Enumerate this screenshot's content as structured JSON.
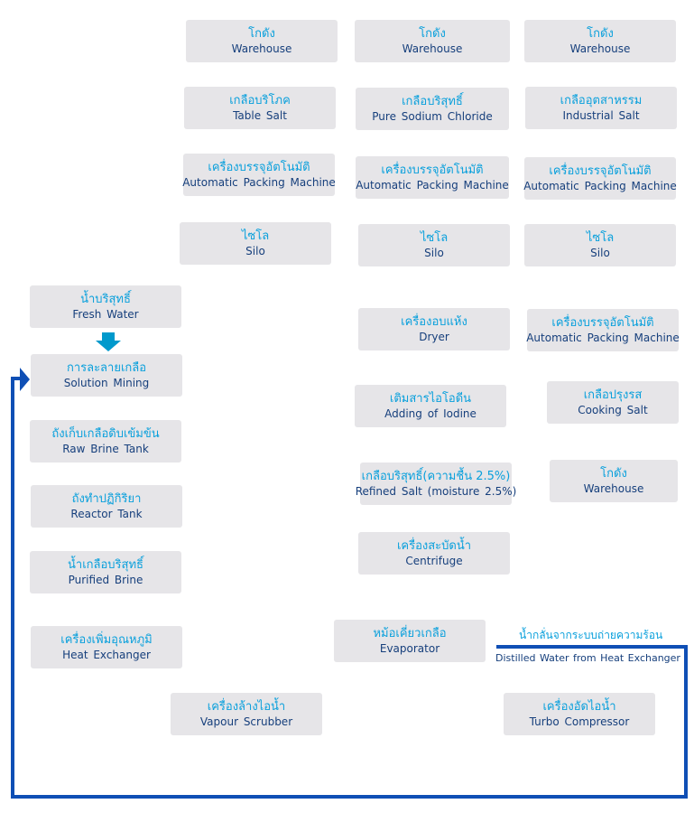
{
  "boxes": {
    "wh1": {
      "th": "โกดัง",
      "en": "Warehouse"
    },
    "wh2": {
      "th": "โกดัง",
      "en": "Warehouse"
    },
    "wh3": {
      "th": "โกดัง",
      "en": "Warehouse"
    },
    "table_salt": {
      "th": "เกลือบริโภค",
      "en": "Table Salt"
    },
    "pure_nacl": {
      "th": "เกลือบริสุทธิ์",
      "en": "Pure Sodium Chloride"
    },
    "industrial": {
      "th": "เกลืออุตสาหรรม",
      "en": "Industrial Salt"
    },
    "pack1": {
      "th": "เครื่องบรรจุอัตโนมัติ",
      "en": "Automatic Packing Machine"
    },
    "pack2": {
      "th": "เครื่องบรรจุอัตโนมัติ",
      "en": "Automatic Packing Machine"
    },
    "pack3": {
      "th": "เครื่องบรรจุอัตโนมัติ",
      "en": "Automatic Packing Machine"
    },
    "silo1": {
      "th": "ไซโล",
      "en": "Silo"
    },
    "silo2": {
      "th": "ไซโล",
      "en": "Silo"
    },
    "silo3": {
      "th": "ไซโล",
      "en": "Silo"
    },
    "fresh": {
      "th": "น้ำบริสุทธิ์",
      "en": "Fresh Water"
    },
    "mining": {
      "th": "การละลายเกลือ",
      "en": "Solution Mining"
    },
    "raw": {
      "th": "ถังเก็บเกลือดิบเข้มข้น",
      "en": "Raw Brine Tank"
    },
    "reactor": {
      "th": "ถังทำปฏิกิริยา",
      "en": "Reactor Tank"
    },
    "purified": {
      "th": "น้ำเกลือบริสุทธิ์",
      "en": "Purified Brine"
    },
    "heat": {
      "th": "เครื่องเพิ่มอุณหภูมิ",
      "en": "Heat Exchanger"
    },
    "scrubber": {
      "th": "เครื่องล้างไอน้ำ",
      "en": "Vapour Scrubber"
    },
    "dryer": {
      "th": "เครื่องอบแห้ง",
      "en": "Dryer"
    },
    "iodine": {
      "th": "เติมสารไอโอดีน",
      "en": "Adding of Iodine"
    },
    "refined": {
      "th": "เกลือบริสุทธิ์(ความชื้น 2.5%)",
      "en": "Refined Salt (moisture 2.5%)"
    },
    "centrifuge": {
      "th": "เครื่องสะบัดน้ำ",
      "en": "Centrifuge"
    },
    "evaporator": {
      "th": "หม้อเคี่ยวเกลือ",
      "en": "Evaporator"
    },
    "pack4": {
      "th": "เครื่องบรรจุอัตโนมัติ",
      "en": "Automatic Packing Machine"
    },
    "cooking": {
      "th": "เกลือปรุงรส",
      "en": "Cooking Salt"
    },
    "wh4": {
      "th": "โกดัง",
      "en": "Warehouse"
    },
    "turbo": {
      "th": "เครื่องอัดไอน้ำ",
      "en": "Turbo Compressor"
    }
  },
  "distilled": {
    "th": "น้ำกลั่นจากระบบถ่ายความร้อน",
    "en": "Distilled Water from Heat Exchanger"
  },
  "colors": {
    "box": "#e6e5e8",
    "thai_text": "#0aa0dc",
    "english_text": "#163f7c",
    "return_line": "#0f4fb5",
    "fresh_arrow": "#0099cc"
  }
}
